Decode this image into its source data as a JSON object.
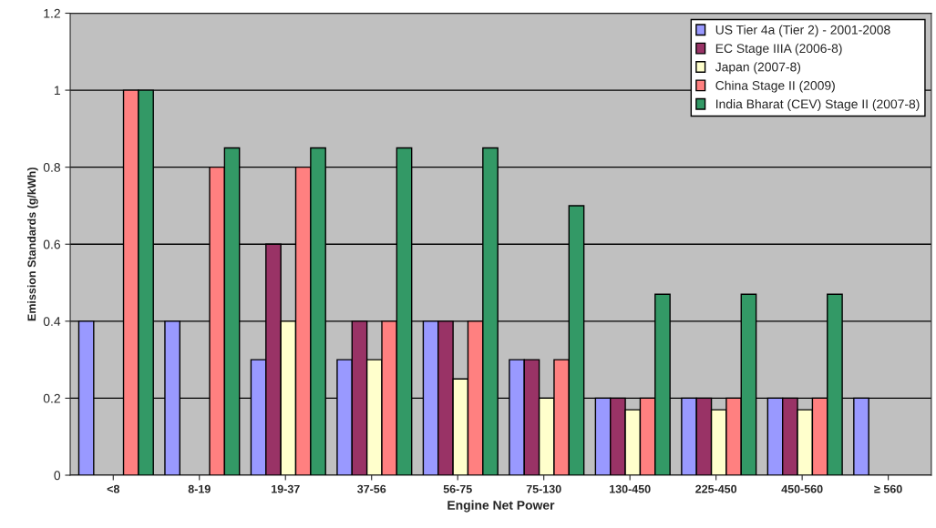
{
  "chart_data": {
    "type": "bar",
    "xlabel": "Engine Net Power",
    "ylabel": "Emission Standards (g/kWh)",
    "categories": [
      "<8",
      "8-19",
      "19-37",
      "37-56",
      "56-75",
      "75-130",
      "130-450",
      "225-450",
      "450-560",
      "≥ 560"
    ],
    "series": [
      {
        "name": "US Tier 4a (Tier 2) - 2001-2008",
        "color": "#9999ff",
        "values": [
          0.4,
          0.4,
          0.3,
          0.3,
          0.4,
          0.3,
          0.2,
          0.2,
          0.2,
          0.2
        ]
      },
      {
        "name": "EC Stage IIIA (2006-8)",
        "color": "#993366",
        "values": [
          null,
          null,
          0.6,
          0.4,
          0.4,
          0.3,
          0.2,
          0.2,
          0.2,
          null
        ]
      },
      {
        "name": "Japan (2007-8)",
        "color": "#ffffcc",
        "values": [
          null,
          null,
          0.4,
          0.3,
          0.25,
          0.2,
          0.17,
          0.17,
          0.17,
          null
        ]
      },
      {
        "name": "China Stage II (2009)",
        "color": "#ff8080",
        "values": [
          1.0,
          0.8,
          0.8,
          0.4,
          0.4,
          0.3,
          0.2,
          0.2,
          0.2,
          null
        ]
      },
      {
        "name": "India Bharat (CEV) Stage II (2007-8)",
        "color": "#339966",
        "values": [
          1.0,
          0.85,
          0.85,
          0.85,
          0.85,
          0.7,
          0.47,
          0.47,
          0.47,
          null
        ]
      }
    ],
    "ylim": [
      0,
      1.2
    ],
    "yticks": [
      0,
      0.2,
      0.4,
      0.6,
      0.8,
      1,
      1.2
    ],
    "grid": "y",
    "legend": "top right"
  }
}
